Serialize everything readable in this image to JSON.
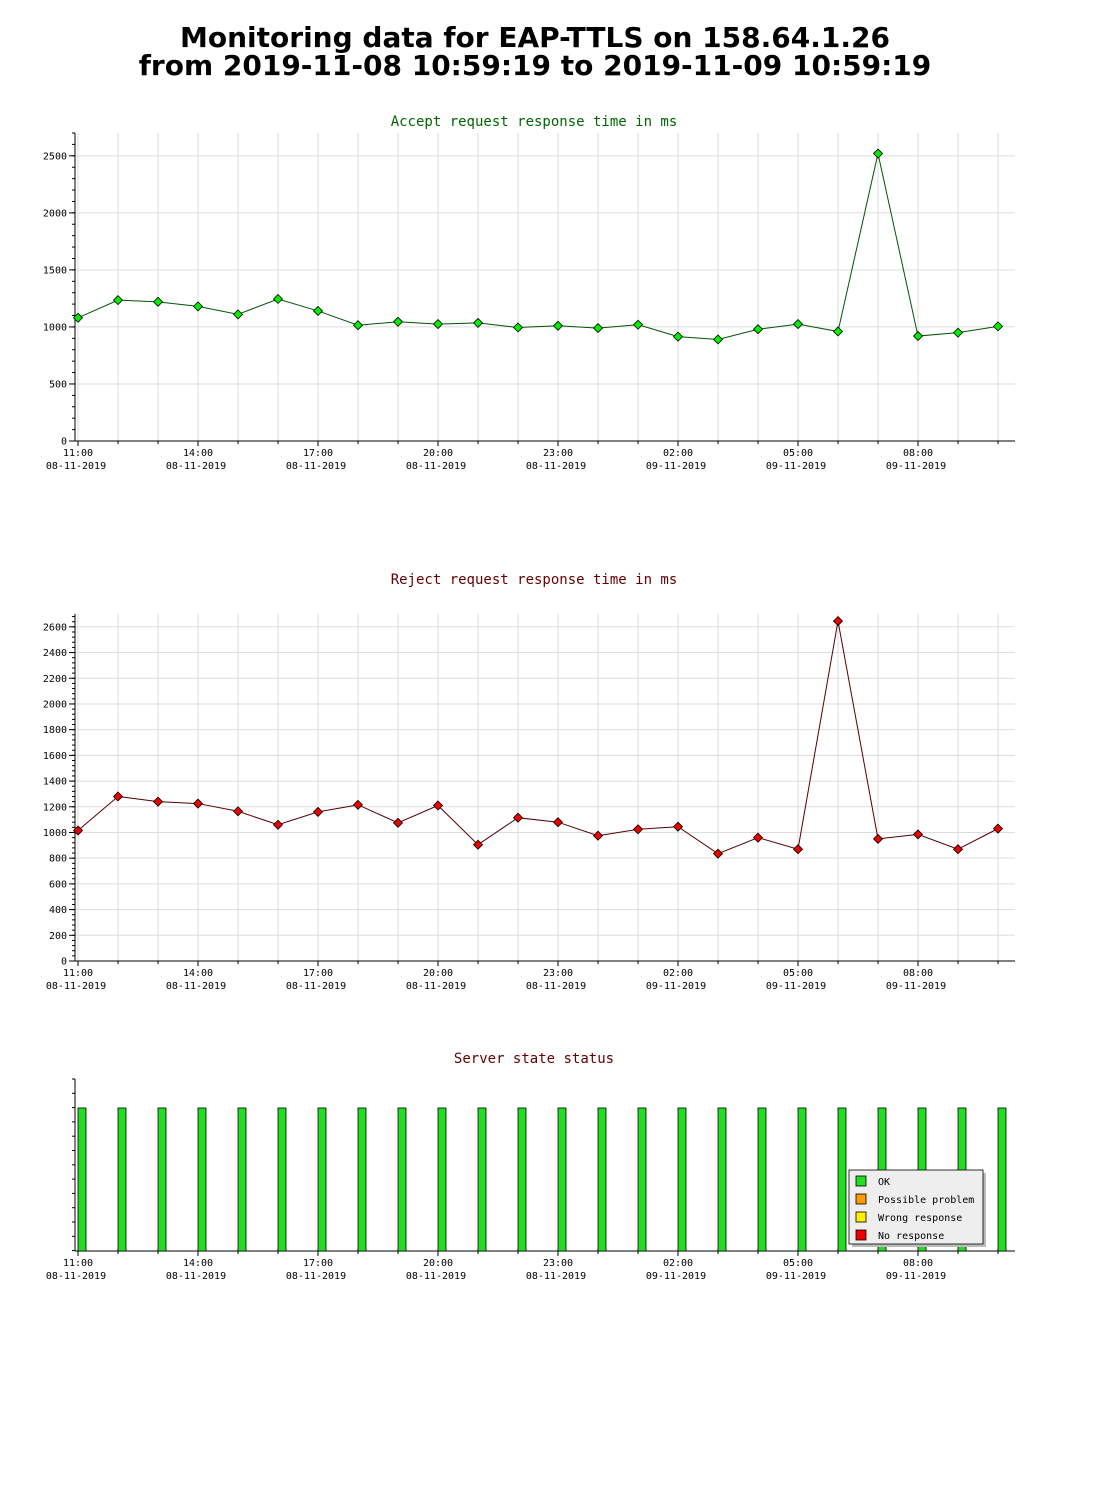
{
  "page": {
    "title_line1": "Monitoring data for EAP-TTLS on 158.64.1.26",
    "title_line2": "from 2019-11-08 10:59:19 to 2019-11-09 10:59:19"
  },
  "colors": {
    "accept_marker": "#00ee00",
    "accept_line": "#005500",
    "accept_title": "#006600",
    "reject_marker": "#ee0000",
    "reject_line": "#550000",
    "reject_title": "#660000",
    "status_title": "#660000",
    "status_ok": "#22dd22",
    "status_possible_problem": "#ff9900",
    "status_wrong_response": "#ffee00",
    "status_no_response": "#ee0000",
    "grid": "#dddddd"
  },
  "chart_data": [
    {
      "id": "accept",
      "type": "line",
      "title": "Accept request response time in ms",
      "xlabel": "",
      "ylabel": "",
      "x_range": [
        0,
        23.5
      ],
      "ylim": [
        0,
        2700
      ],
      "y_ticks": [
        0,
        500,
        1000,
        1500,
        2000,
        2500
      ],
      "x_ticks": [
        {
          "x": 0,
          "time": "11:00",
          "date": "08-11-2019"
        },
        {
          "x": 3,
          "time": "14:00",
          "date": "08-11-2019"
        },
        {
          "x": 6,
          "time": "17:00",
          "date": "08-11-2019"
        },
        {
          "x": 9,
          "time": "20:00",
          "date": "08-11-2019"
        },
        {
          "x": 12,
          "time": "23:00",
          "date": "08-11-2019"
        },
        {
          "x": 15,
          "time": "02:00",
          "date": "09-11-2019"
        },
        {
          "x": 18,
          "time": "05:00",
          "date": "09-11-2019"
        },
        {
          "x": 21,
          "time": "08:00",
          "date": "09-11-2019"
        }
      ],
      "grid": true,
      "series": [
        {
          "values": [
            1080,
            1235,
            1220,
            1180,
            1110,
            1245,
            1140,
            1015,
            1045,
            1025,
            1035,
            995,
            1010,
            990,
            1020,
            915,
            890,
            980,
            1025,
            960,
            2520,
            920,
            950,
            1005
          ]
        }
      ]
    },
    {
      "id": "reject",
      "type": "line",
      "title": "Reject request response time in ms",
      "xlabel": "",
      "ylabel": "",
      "x_range": [
        0,
        23.5
      ],
      "ylim": [
        0,
        2700
      ],
      "y_ticks": [
        0,
        200,
        400,
        600,
        800,
        1000,
        1200,
        1400,
        1600,
        1800,
        2000,
        2200,
        2400,
        2600
      ],
      "x_ticks": [
        {
          "x": 0,
          "time": "11:00",
          "date": "08-11-2019"
        },
        {
          "x": 3,
          "time": "14:00",
          "date": "08-11-2019"
        },
        {
          "x": 6,
          "time": "17:00",
          "date": "08-11-2019"
        },
        {
          "x": 9,
          "time": "20:00",
          "date": "08-11-2019"
        },
        {
          "x": 12,
          "time": "23:00",
          "date": "08-11-2019"
        },
        {
          "x": 15,
          "time": "02:00",
          "date": "09-11-2019"
        },
        {
          "x": 18,
          "time": "05:00",
          "date": "09-11-2019"
        },
        {
          "x": 21,
          "time": "08:00",
          "date": "09-11-2019"
        }
      ],
      "grid": true,
      "series": [
        {
          "values": [
            1015,
            1280,
            1240,
            1225,
            1165,
            1060,
            1160,
            1215,
            1075,
            1210,
            905,
            1115,
            1080,
            975,
            1025,
            1045,
            835,
            960,
            870,
            2645,
            950,
            985,
            870,
            1030
          ]
        }
      ]
    },
    {
      "id": "status",
      "type": "bar",
      "title": "Server state status",
      "xlabel": "",
      "ylabel": "",
      "x_range": [
        0,
        23.5
      ],
      "x_ticks": [
        {
          "x": 0,
          "time": "11:00",
          "date": "08-11-2019"
        },
        {
          "x": 3,
          "time": "14:00",
          "date": "08-11-2019"
        },
        {
          "x": 6,
          "time": "17:00",
          "date": "08-11-2019"
        },
        {
          "x": 9,
          "time": "20:00",
          "date": "08-11-2019"
        },
        {
          "x": 12,
          "time": "23:00",
          "date": "08-11-2019"
        },
        {
          "x": 15,
          "time": "02:00",
          "date": "09-11-2019"
        },
        {
          "x": 18,
          "time": "05:00",
          "date": "09-11-2019"
        },
        {
          "x": 21,
          "time": "08:00",
          "date": "09-11-2019"
        }
      ],
      "grid": false,
      "states": [
        "OK",
        "OK",
        "OK",
        "OK",
        "OK",
        "OK",
        "OK",
        "OK",
        "OK",
        "OK",
        "OK",
        "OK",
        "OK",
        "OK",
        "OK",
        "OK",
        "OK",
        "OK",
        "OK",
        "OK",
        "OK",
        "OK",
        "OK",
        "OK"
      ],
      "legend": {
        "placement": "bottom-right",
        "entries": [
          {
            "label": "OK",
            "color": "#22dd22"
          },
          {
            "label": "Possible problem",
            "color": "#ff9900"
          },
          {
            "label": "Wrong response",
            "color": "#ffee00"
          },
          {
            "label": "No response",
            "color": "#ee0000"
          }
        ]
      }
    }
  ]
}
